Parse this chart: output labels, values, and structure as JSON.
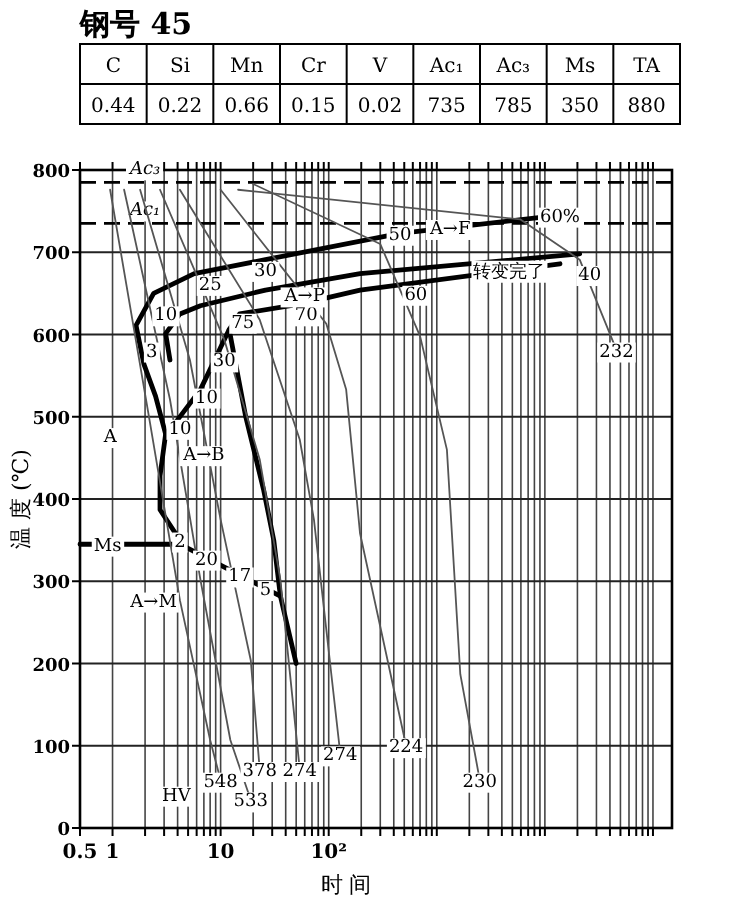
{
  "chart_data": [
    {
      "type": "other",
      "title": "钢号 45",
      "annotations": [
        "C",
        "Si",
        "Mn",
        "Cr",
        "V",
        "Ac₁",
        "Ac₃",
        "Ms",
        "TA",
        "0.44",
        "0.22",
        "0.66",
        "0.15",
        "0.02",
        "735",
        "785",
        "350",
        "880"
      ]
    },
    {
      "type": "line",
      "xlabel": "时 间",
      "ylabel": "温 度 (℃)",
      "log": "x",
      "grid": true,
      "line_style": "solid",
      "marker": "none",
      "xlim": [
        0.5,
        150000
      ],
      "ylim": [
        0,
        800
      ],
      "xticks": [
        0.5,
        1,
        {
          "value": 2,
          "label": null
        },
        {
          "value": 3,
          "label": null
        },
        {
          "value": 4,
          "label": null
        },
        {
          "value": 5,
          "label": null
        },
        {
          "value": 6,
          "label": null
        },
        {
          "value": 7,
          "label": null
        },
        {
          "value": 8,
          "label": null
        },
        {
          "value": 9,
          "label": null
        },
        10,
        {
          "value": 20,
          "label": null
        },
        {
          "value": 30,
          "label": null
        },
        {
          "value": 40,
          "label": null
        },
        {
          "value": 50,
          "label": null
        },
        {
          "value": 60,
          "label": null
        },
        {
          "value": 70,
          "label": null
        },
        {
          "value": 80,
          "label": null
        },
        {
          "value": 90,
          "label": null
        },
        {
          "value": 100,
          "label": "10²"
        },
        {
          "value": 200,
          "label": null
        },
        {
          "value": 300,
          "label": null
        },
        {
          "value": 400,
          "label": null
        },
        {
          "value": 500,
          "label": null
        },
        {
          "value": 600,
          "label": null
        },
        {
          "value": 700,
          "label": null
        },
        {
          "value": 800,
          "label": null
        },
        {
          "value": 900,
          "label": null
        },
        {
          "value": 1000,
          "label": null
        },
        {
          "value": 2000,
          "label": null
        },
        {
          "value": 3000,
          "label": null
        },
        {
          "value": 4000,
          "label": null
        },
        {
          "value": 5000,
          "label": null
        },
        {
          "value": 6000,
          "label": null
        },
        {
          "value": 7000,
          "label": null
        },
        {
          "value": 8000,
          "label": null
        },
        {
          "value": 9000,
          "label": null
        },
        {
          "value": 10000,
          "label": null
        },
        {
          "value": 20000,
          "label": null
        },
        {
          "value": 30000,
          "label": null
        },
        {
          "value": 40000,
          "label": null
        },
        {
          "value": 50000,
          "label": null
        },
        {
          "value": 60000,
          "label": null
        },
        {
          "value": 70000,
          "label": null
        },
        {
          "value": 80000,
          "label": null
        },
        {
          "value": 90000,
          "label": null
        },
        {
          "value": 100000,
          "label": null
        }
      ],
      "yticks": [
        0,
        100,
        200,
        300,
        400,
        500,
        600,
        700,
        800
      ],
      "series": [
        {
          "color": "#000000",
          "x": [
            13800,
            457,
            26,
            5.7,
            2.4,
            1.65,
            1.95,
            2.5,
            3.1,
            2.75,
            2.75,
            4.2
          ],
          "values": [
            745,
            723,
            691,
            674,
            650,
            611,
            564,
            525,
            479,
            428,
            387,
            350
          ]
        },
        {
          "color": "#000000",
          "x": [
            21000,
            195,
            26,
            6.5,
            4.2,
            3.1,
            3.4
          ],
          "values": [
            698,
            674,
            654,
            635,
            625,
            601,
            569
          ]
        },
        {
          "color": "#000000",
          "x": [
            13800,
            195,
            54,
            15,
            12,
            6.5,
            3.1
          ],
          "values": [
            686,
            654,
            637,
            625,
            606,
            533,
            477
          ]
        },
        {
          "color": "#000000",
          "x": [
            12,
            17,
            25,
            31,
            35.7,
            50
          ],
          "values": [
            606,
            501,
            411,
            350,
            282,
            200
          ]
        },
        {
          "color": "#000000",
          "x": [
            0.5,
            4.2,
            35.7
          ],
          "values": [
            345,
            345,
            282
          ]
        },
        {
          "color": "#555555",
          "x": [
            0.95,
            2.2,
            4.2,
            8,
            10
          ],
          "values": [
            776,
            496,
            277,
            107,
            58
          ]
        },
        {
          "color": "#555555",
          "x": [
            1.28,
            3.4,
            6.5,
            12.3,
            19
          ],
          "values": [
            776,
            521,
            302,
            107,
            34
          ]
        },
        {
          "color": "#555555",
          "x": [
            1.8,
            5.2,
            10,
            19,
            23
          ],
          "values": [
            776,
            569,
            375,
            204,
            71
          ]
        },
        {
          "color": "#555555",
          "x": [
            2.75,
            10.8,
            23,
            35.7,
            54
          ],
          "values": [
            776,
            594,
            448,
            302,
            71
          ]
        },
        {
          "color": "#555555",
          "x": [
            4.2,
            23,
            54,
            73,
            128
          ],
          "values": [
            776,
            618,
            472,
            375,
            90
          ]
        },
        {
          "color": "#555555",
          "x": [
            10,
            95,
            145,
            195,
            520
          ],
          "values": [
            776,
            613,
            533,
            358,
            100
          ]
        },
        {
          "color": "#555555",
          "x": [
            20,
            300,
            700,
            1240,
            1650,
            2500
          ],
          "values": [
            783,
            710,
            598,
            460,
            187,
            58
          ]
        },
        {
          "color": "#555555",
          "x": [
            14.5,
            5900,
            21000,
            46000
          ],
          "values": [
            776,
            740,
            691,
            581
          ]
        }
      ],
      "ref_lines": [
        {
          "axis": "y",
          "value": 785,
          "label": "Ac₃",
          "line_style": "dashed",
          "color": "#000000"
        },
        {
          "axis": "y",
          "value": 735,
          "label": "Ac₁",
          "line_style": "dashed",
          "color": "#000000"
        }
      ],
      "annotations": [
        {
          "text": "10",
          "x": 3.1,
          "y": 625
        },
        {
          "text": "25",
          "x": 8,
          "y": 662
        },
        {
          "text": "30",
          "x": 26,
          "y": 679
        },
        {
          "text": "75",
          "x": 16,
          "y": 616
        },
        {
          "text": "70",
          "x": 62,
          "y": 625
        },
        {
          "text": "3",
          "x": 2.3,
          "y": 581
        },
        {
          "text": "30",
          "x": 10.8,
          "y": 569
        },
        {
          "text": "10",
          "x": 7.4,
          "y": 525
        },
        {
          "text": "10",
          "x": 4.2,
          "y": 487
        },
        {
          "text": "A→B",
          "x": 7,
          "y": 455
        },
        {
          "text": "A→P",
          "x": 60,
          "y": 648
        },
        {
          "text": "A",
          "x": 0.95,
          "y": 477
        },
        {
          "text": "50",
          "x": 457,
          "y": 723
        },
        {
          "text": "60",
          "x": 640,
          "y": 650
        },
        {
          "text": "A→F",
          "x": 1330,
          "y": 730
        },
        {
          "text": "60%",
          "x": 13800,
          "y": 745
        },
        {
          "text": "40",
          "x": 26000,
          "y": 674
        },
        {
          "text": "转变完了",
          "x": 4700,
          "y": 678
        },
        {
          "text": "2",
          "x": 4.2,
          "y": 350
        },
        {
          "text": "20",
          "x": 7.4,
          "y": 328
        },
        {
          "text": "17",
          "x": 15,
          "y": 307.5
        },
        {
          "text": "5",
          "x": 26,
          "y": 291
        },
        {
          "text": "Ms",
          "x": 0.9,
          "y": 345
        },
        {
          "text": "A→M",
          "x": 2.4,
          "y": 277
        },
        {
          "text": "HV",
          "x": 3.9,
          "y": 41
        },
        {
          "text": "548",
          "x": 10,
          "y": 58
        },
        {
          "text": "533",
          "x": 19,
          "y": 34
        },
        {
          "text": "378",
          "x": 23,
          "y": 71
        },
        {
          "text": "274",
          "x": 54,
          "y": 71
        },
        {
          "text": "274",
          "x": 128,
          "y": 90
        },
        {
          "text": "224",
          "x": 520,
          "y": 100
        },
        {
          "text": "230",
          "x": 2500,
          "y": 58
        },
        {
          "text": "232",
          "x": 46000,
          "y": 581
        }
      ]
    }
  ]
}
